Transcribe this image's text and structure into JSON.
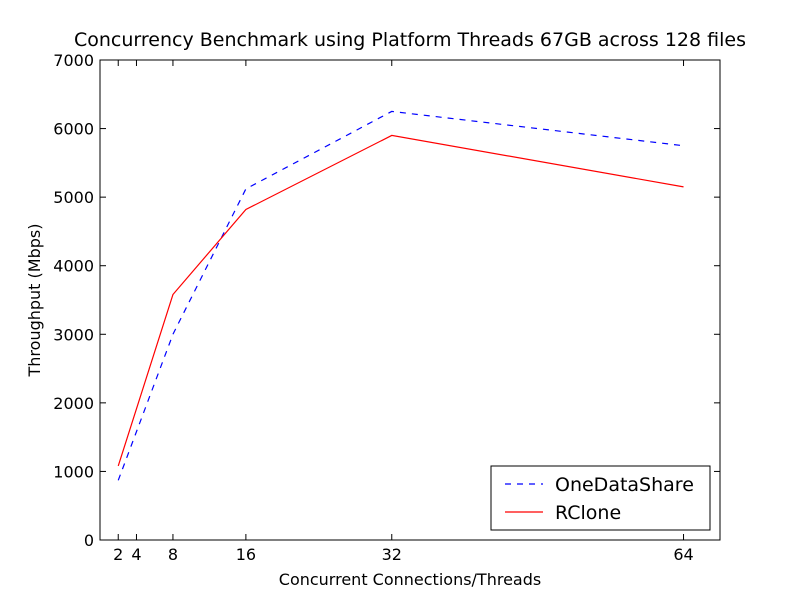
{
  "chart_data": {
    "type": "line",
    "title": "Concurrency Benchmark using Platform Threads 67GB across 128 files",
    "xlabel": "Concurrent Connections/Threads",
    "ylabel": "Throughput (Mbps)",
    "x": [
      2,
      8,
      16,
      32,
      64
    ],
    "xticks": [
      2,
      4,
      8,
      16,
      32,
      64
    ],
    "xlim": [
      0,
      68
    ],
    "ylim": [
      0,
      7000
    ],
    "yticks": [
      0,
      1000,
      2000,
      3000,
      4000,
      5000,
      6000,
      7000
    ],
    "grid": false,
    "legend_position": "lower right",
    "series": [
      {
        "name": "OneDataShare",
        "values": [
          870,
          3000,
          5120,
          6250,
          5750
        ],
        "color": "#0000ff",
        "style": "dashed"
      },
      {
        "name": "RClone",
        "values": [
          1080,
          3580,
          4820,
          5900,
          5150
        ],
        "color": "#ff0000",
        "style": "solid"
      }
    ]
  }
}
